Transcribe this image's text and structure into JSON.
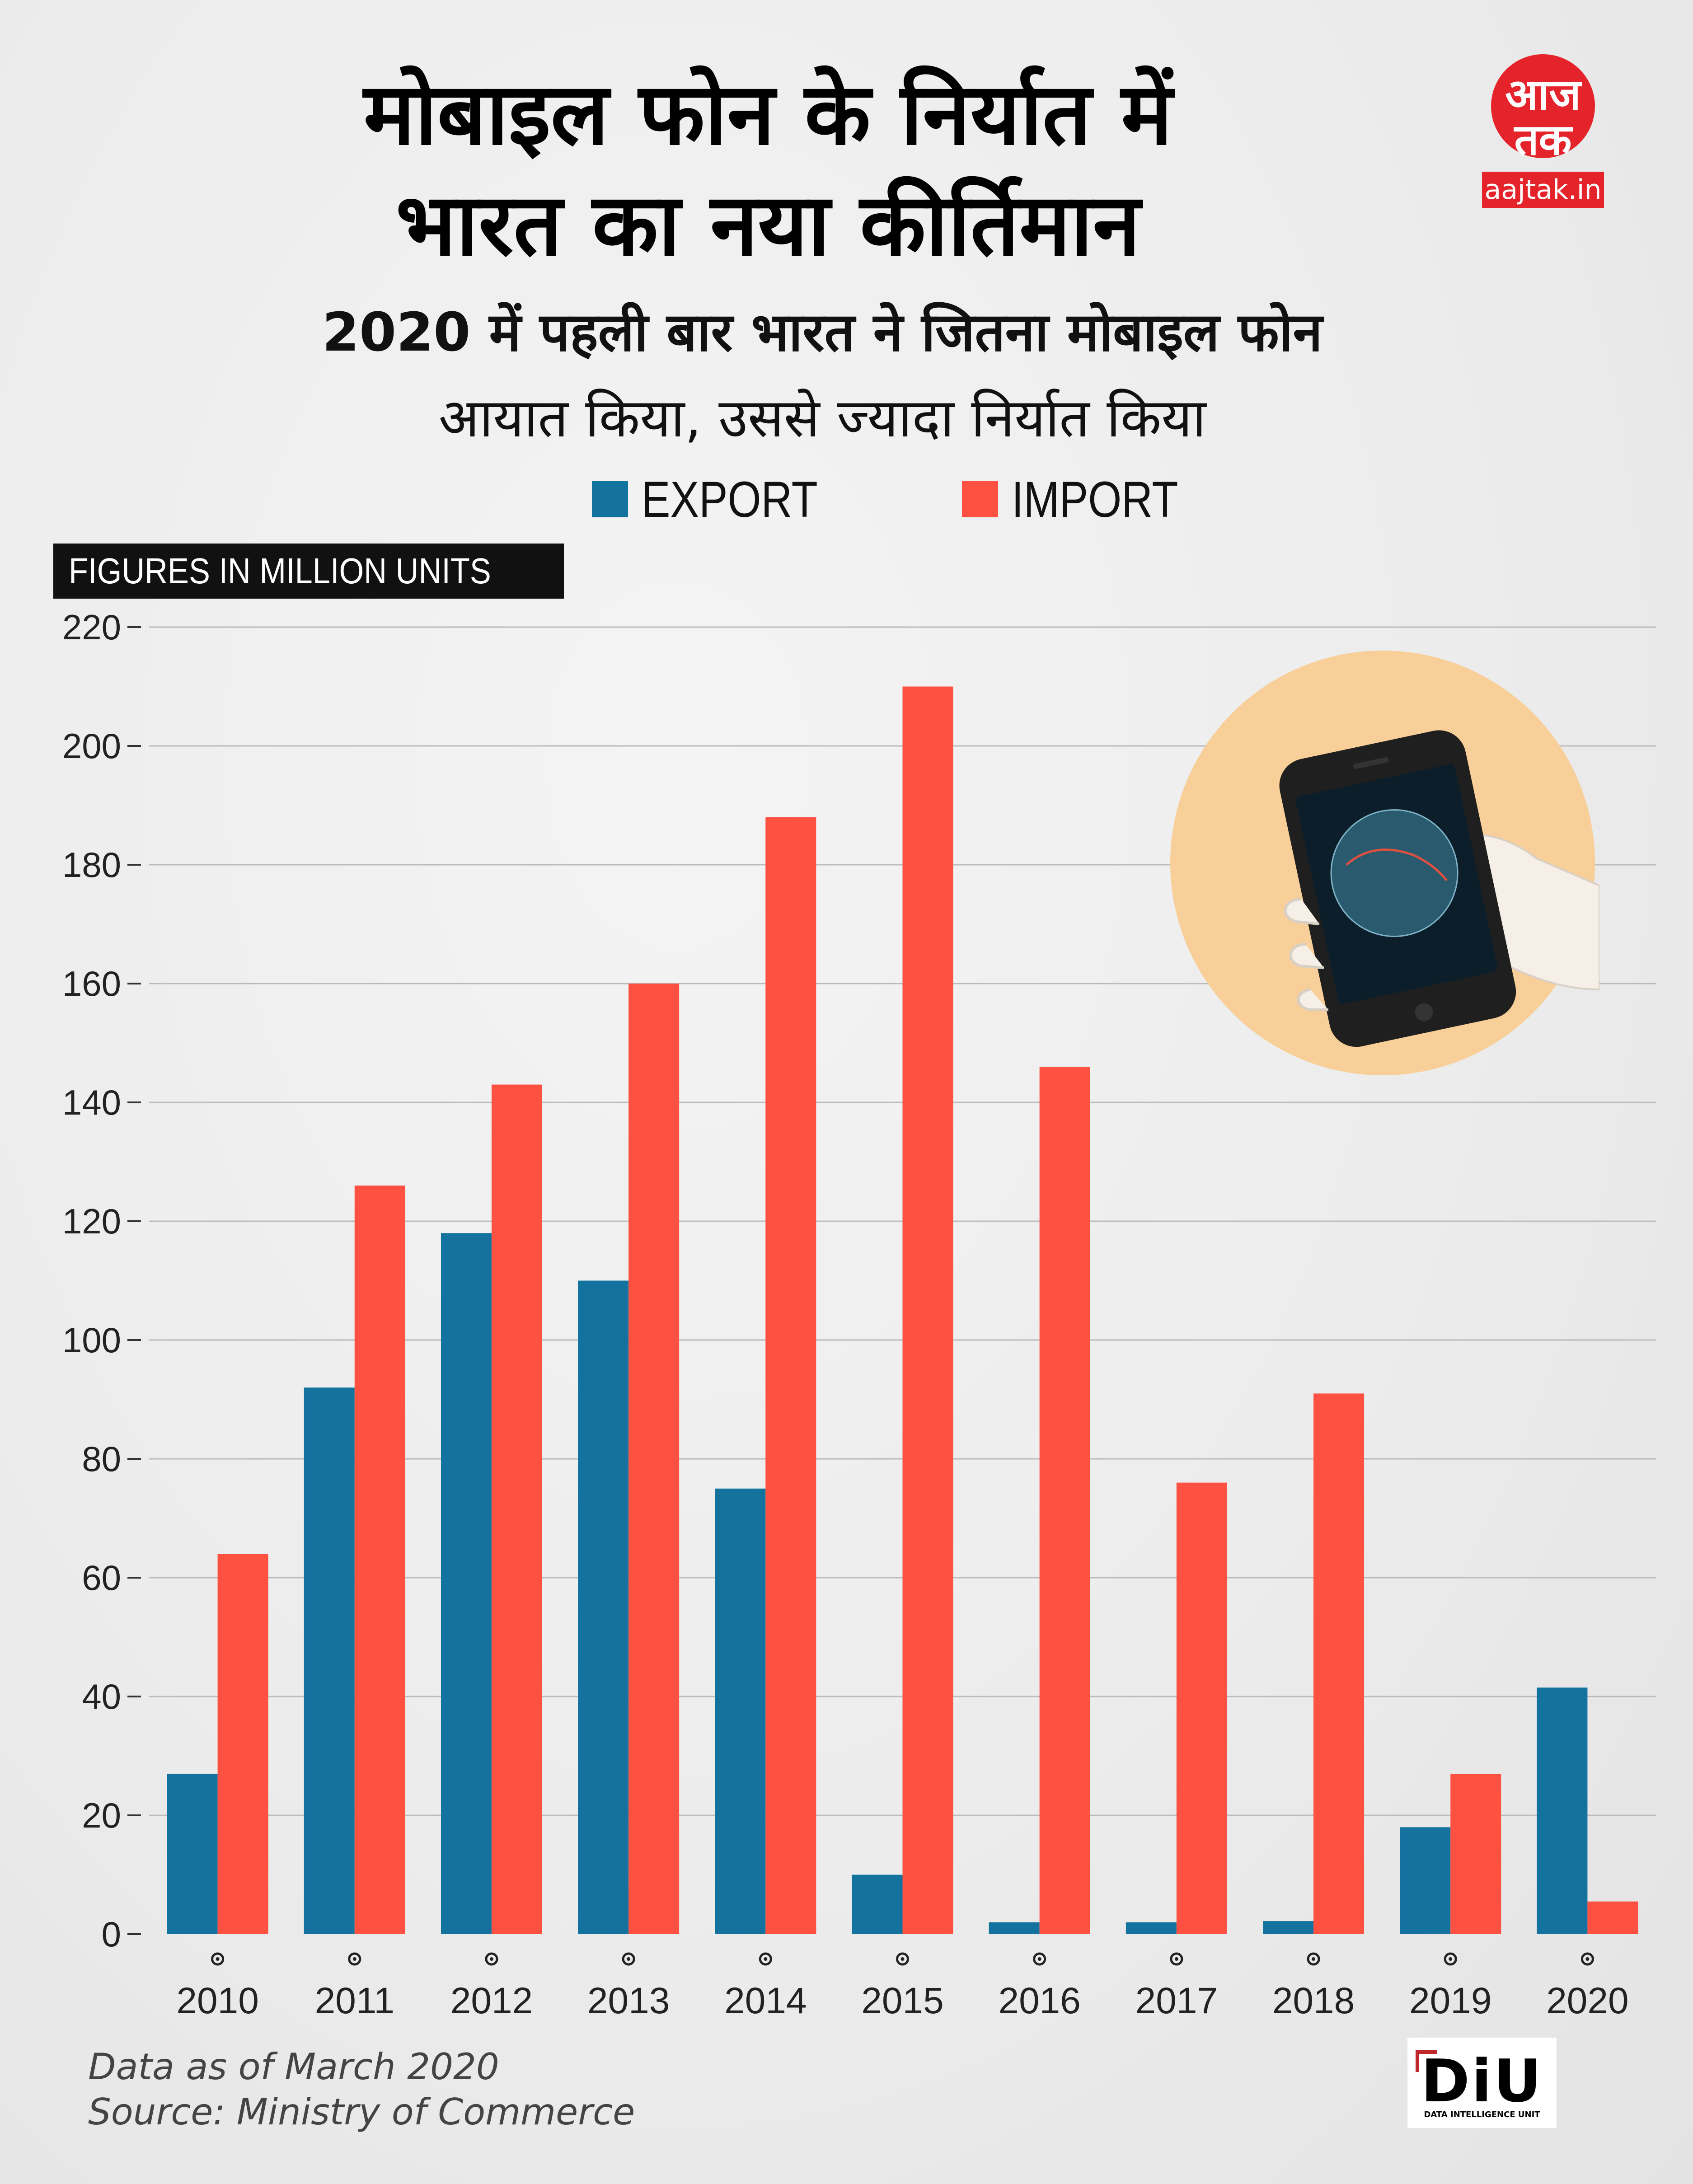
{
  "header": {
    "title_line1": "मोबाइल फोन के निर्यात में",
    "title_line2": "भारत का नया कीर्तिमान",
    "subtitle_line1": "2020 में पहली बार भारत ने जितना मोबाइल फोन",
    "subtitle_line2": "आयात किया, उससे ज्यादा निर्यात किया"
  },
  "logo": {
    "word1": "आज",
    "word2": "तक",
    "domain": "aajtak.in"
  },
  "units_label": "FIGURES IN MILLION UNITS",
  "colors": {
    "export": "#14739e",
    "import": "#fe5142",
    "grid": "#bbbbbb",
    "illustration_bg": "#f8cf98"
  },
  "chart_data": {
    "type": "bar",
    "title": "मोबाइल फोन के निर्यात में भारत का नया कीर्तिमान",
    "xlabel": "",
    "ylabel": "FIGURES IN MILLION UNITS",
    "ylim": [
      0,
      220
    ],
    "yticks": [
      0,
      20,
      40,
      60,
      80,
      100,
      120,
      140,
      160,
      180,
      200,
      220
    ],
    "grid": true,
    "legend_position": "top",
    "categories": [
      "2010",
      "2011",
      "2012",
      "2013",
      "2014",
      "2015",
      "2016",
      "2017",
      "2018",
      "2019",
      "2020"
    ],
    "series": [
      {
        "name": "EXPORT",
        "values": [
          27,
          92,
          118,
          110,
          75,
          10,
          2,
          2,
          2.2,
          18,
          41.5
        ]
      },
      {
        "name": "IMPORT",
        "values": [
          64,
          126,
          143,
          160,
          188,
          210,
          146,
          76,
          91,
          27,
          5.5
        ]
      }
    ]
  },
  "footnote": {
    "line1": "Data as of March 2020",
    "line2": "Source: Ministry of Commerce"
  },
  "diu": {
    "mark": "DiU",
    "full": "DATA INTELLIGENCE UNIT"
  }
}
